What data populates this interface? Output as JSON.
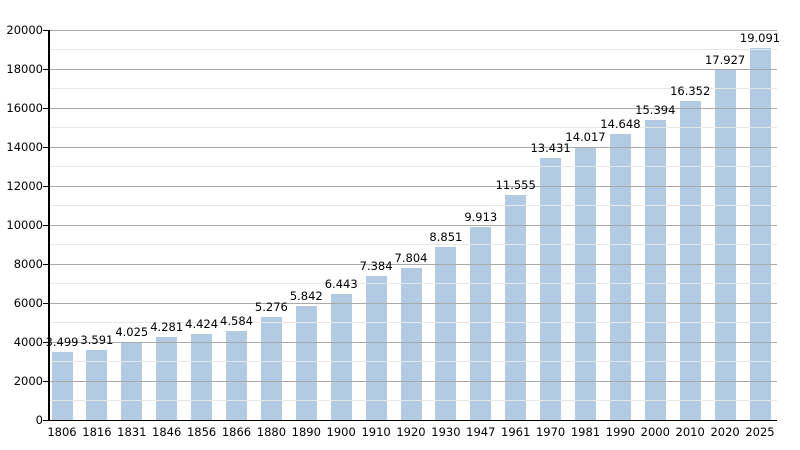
{
  "chart_data": {
    "type": "bar",
    "title": "",
    "categories": [
      "1806",
      "1816",
      "1831",
      "1846",
      "1856",
      "1866",
      "1880",
      "1890",
      "1900",
      "1910",
      "1920",
      "1930",
      "1947",
      "1961",
      "1970",
      "1981",
      "1990",
      "2000",
      "2010",
      "2020",
      "2025"
    ],
    "values": [
      3499,
      3591,
      4025,
      4281,
      4424,
      4584,
      5276,
      5842,
      6443,
      7384,
      7804,
      8851,
      9913,
      11555,
      13431,
      14017,
      14648,
      15394,
      16352,
      17927,
      19091
    ],
    "value_labels": [
      "3.499",
      "3.591",
      "4.025",
      "4.281",
      "4.424",
      "4.584",
      "5.276",
      "5.842",
      "6.443",
      "7.384",
      "7.804",
      "8.851",
      "9.913",
      "11.555",
      "13.431",
      "14.017",
      "14.648",
      "15.394",
      "16.352",
      "17.927",
      "19.091"
    ],
    "xlabel": "",
    "ylabel": "",
    "ylim": [
      0,
      20000
    ],
    "y_major_step": 2000,
    "y_minor_step": 1000,
    "y_tick_labels": [
      "0",
      "2000",
      "4000",
      "6000",
      "8000",
      "10000",
      "12000",
      "14000",
      "16000",
      "18000",
      "20000"
    ],
    "grid": "major-and-minor horizontal",
    "legend_position": "none",
    "colors": {
      "bar_fill": "#b2cbe3",
      "grid_major": "#a9a9a9",
      "grid_minor": "#e7e7e7",
      "axis": "#000000",
      "text": "#000000",
      "background": "#ffffff"
    }
  }
}
